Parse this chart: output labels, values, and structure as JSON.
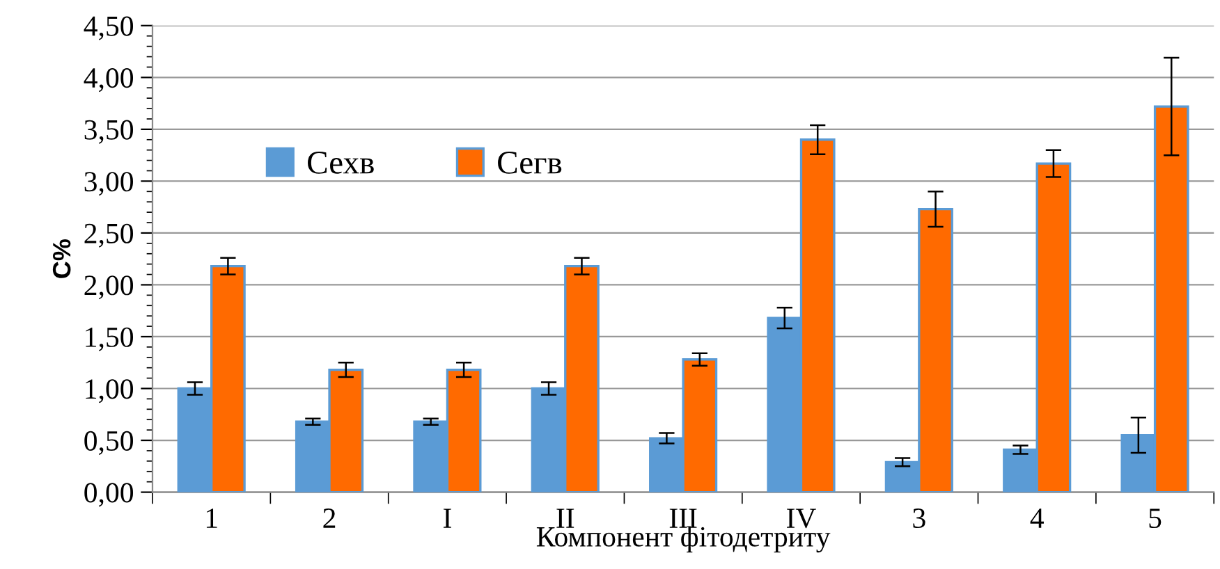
{
  "chart_data": {
    "type": "bar",
    "xlabel": "Компонент фітодетриту",
    "ylabel": "C%",
    "categories": [
      "1",
      "2",
      "I",
      "II",
      "III",
      "IV",
      "3",
      "4",
      "5"
    ],
    "series": [
      {
        "name": "Сехв",
        "color": "#5b9bd5",
        "values": [
          1.0,
          0.68,
          0.68,
          1.0,
          0.52,
          1.68,
          0.29,
          0.41,
          0.55
        ],
        "errors": [
          0.06,
          0.03,
          0.03,
          0.06,
          0.05,
          0.1,
          0.04,
          0.04,
          0.17
        ]
      },
      {
        "name": "Сегв",
        "color": "#ff6a00",
        "values": [
          2.18,
          1.18,
          1.18,
          2.18,
          1.28,
          3.4,
          2.73,
          3.17,
          3.72
        ],
        "errors": [
          0.08,
          0.07,
          0.07,
          0.08,
          0.06,
          0.14,
          0.17,
          0.13,
          0.47
        ]
      }
    ],
    "ylim": [
      0,
      4.5
    ],
    "yticks": [
      {
        "value": 0,
        "label": "0,00"
      },
      {
        "value": 0.5,
        "label": "0,50"
      },
      {
        "value": 1,
        "label": "1,00"
      },
      {
        "value": 1.5,
        "label": "1,50"
      },
      {
        "value": 2,
        "label": "2,00"
      },
      {
        "value": 2.5,
        "label": "2,50"
      },
      {
        "value": 3,
        "label": "3,00"
      },
      {
        "value": 3.5,
        "label": "3,50"
      },
      {
        "value": 4,
        "label": "4,00"
      },
      {
        "value": 4.5,
        "label": "4,50"
      }
    ],
    "grid": "y",
    "legend": "top left"
  }
}
